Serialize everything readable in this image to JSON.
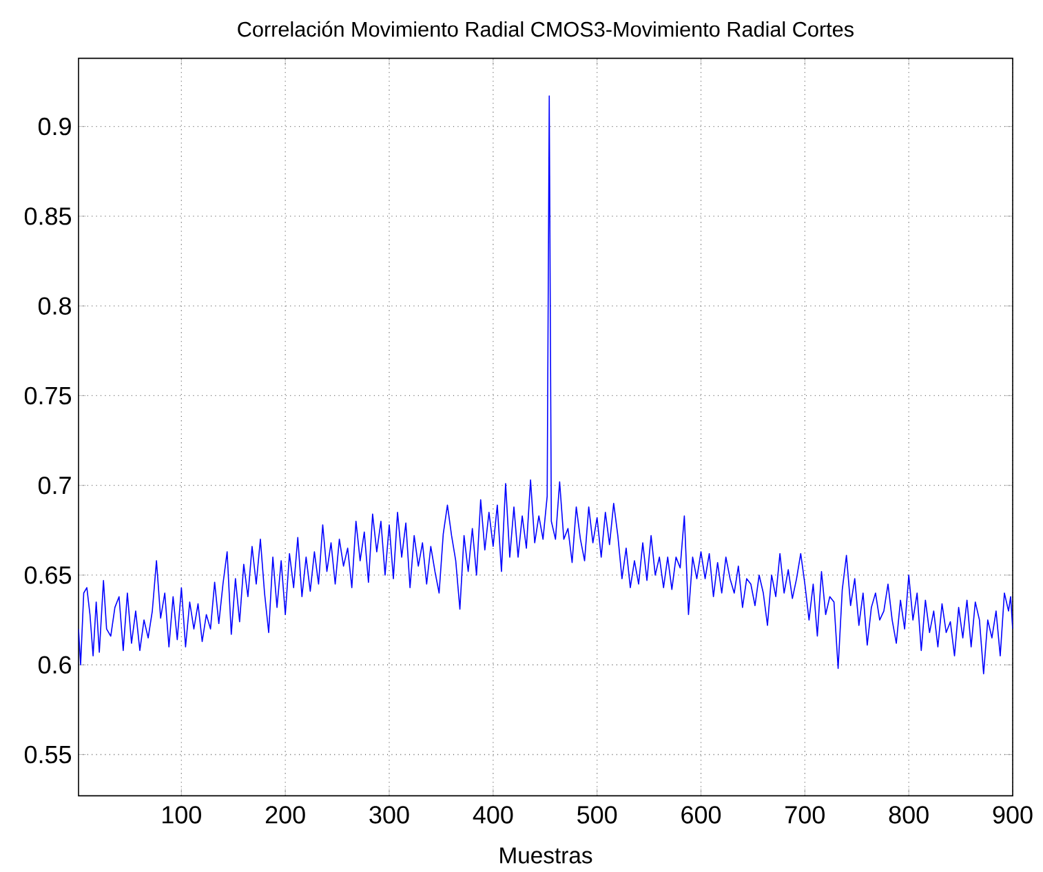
{
  "chart_data": {
    "type": "line",
    "title": "Correlación Movimiento Radial CMOS3-Movimiento Radial Cortes",
    "xlabel": "Muestras",
    "x": [
      1,
      3,
      6,
      9,
      12,
      15,
      18,
      21,
      25,
      28,
      32,
      36,
      40,
      44,
      48,
      52,
      56,
      60,
      64,
      68,
      72,
      76,
      80,
      84,
      88,
      92,
      96,
      100,
      104,
      108,
      112,
      116,
      120,
      124,
      128,
      132,
      136,
      140,
      144,
      148,
      152,
      156,
      160,
      164,
      168,
      172,
      176,
      180,
      184,
      188,
      192,
      196,
      200,
      204,
      208,
      212,
      216,
      220,
      224,
      228,
      232,
      236,
      240,
      244,
      248,
      252,
      256,
      260,
      264,
      268,
      272,
      276,
      280,
      284,
      288,
      292,
      296,
      300,
      304,
      308,
      312,
      316,
      320,
      324,
      328,
      332,
      336,
      340,
      344,
      348,
      352,
      356,
      360,
      364,
      368,
      372,
      376,
      380,
      384,
      388,
      392,
      396,
      400,
      404,
      408,
      412,
      416,
      420,
      424,
      428,
      432,
      436,
      440,
      444,
      448,
      452,
      454,
      456,
      460,
      464,
      468,
      472,
      476,
      480,
      484,
      488,
      492,
      496,
      500,
      504,
      508,
      512,
      516,
      520,
      524,
      528,
      532,
      536,
      540,
      544,
      548,
      552,
      556,
      560,
      564,
      568,
      572,
      576,
      580,
      584,
      588,
      592,
      596,
      600,
      604,
      608,
      612,
      616,
      620,
      624,
      628,
      632,
      636,
      640,
      644,
      648,
      652,
      656,
      660,
      664,
      668,
      672,
      676,
      680,
      684,
      688,
      692,
      696,
      700,
      704,
      708,
      712,
      716,
      720,
      724,
      728,
      732,
      736,
      740,
      744,
      748,
      752,
      756,
      760,
      764,
      768,
      772,
      776,
      780,
      784,
      788,
      792,
      796,
      800,
      804,
      808,
      812,
      816,
      820,
      824,
      828,
      832,
      836,
      840,
      844,
      848,
      852,
      856,
      860,
      864,
      868,
      872,
      876,
      880,
      884,
      888,
      892,
      896,
      898,
      900
    ],
    "series": [
      {
        "color": "#0000ff",
        "values": [
          0.62,
          0.6,
          0.64,
          0.643,
          0.628,
          0.605,
          0.635,
          0.607,
          0.647,
          0.62,
          0.616,
          0.632,
          0.638,
          0.608,
          0.64,
          0.612,
          0.63,
          0.608,
          0.625,
          0.615,
          0.63,
          0.658,
          0.626,
          0.64,
          0.61,
          0.638,
          0.614,
          0.643,
          0.61,
          0.635,
          0.62,
          0.634,
          0.613,
          0.628,
          0.62,
          0.646,
          0.623,
          0.645,
          0.663,
          0.617,
          0.648,
          0.624,
          0.656,
          0.638,
          0.666,
          0.645,
          0.67,
          0.64,
          0.618,
          0.66,
          0.632,
          0.658,
          0.628,
          0.662,
          0.643,
          0.671,
          0.638,
          0.66,
          0.641,
          0.663,
          0.645,
          0.678,
          0.652,
          0.668,
          0.645,
          0.67,
          0.655,
          0.665,
          0.643,
          0.68,
          0.658,
          0.674,
          0.646,
          0.684,
          0.663,
          0.68,
          0.65,
          0.678,
          0.648,
          0.685,
          0.66,
          0.679,
          0.643,
          0.672,
          0.655,
          0.668,
          0.645,
          0.666,
          0.652,
          0.64,
          0.673,
          0.689,
          0.672,
          0.658,
          0.631,
          0.672,
          0.652,
          0.676,
          0.65,
          0.692,
          0.664,
          0.685,
          0.666,
          0.689,
          0.652,
          0.701,
          0.66,
          0.688,
          0.66,
          0.683,
          0.665,
          0.703,
          0.668,
          0.683,
          0.67,
          0.694,
          0.917,
          0.68,
          0.67,
          0.702,
          0.67,
          0.676,
          0.657,
          0.688,
          0.67,
          0.658,
          0.688,
          0.668,
          0.682,
          0.66,
          0.685,
          0.667,
          0.69,
          0.672,
          0.648,
          0.665,
          0.643,
          0.658,
          0.645,
          0.668,
          0.647,
          0.672,
          0.65,
          0.66,
          0.643,
          0.66,
          0.642,
          0.66,
          0.654,
          0.683,
          0.628,
          0.66,
          0.648,
          0.663,
          0.648,
          0.662,
          0.638,
          0.657,
          0.64,
          0.66,
          0.648,
          0.64,
          0.655,
          0.632,
          0.648,
          0.645,
          0.633,
          0.65,
          0.64,
          0.622,
          0.65,
          0.638,
          0.662,
          0.64,
          0.653,
          0.637,
          0.648,
          0.662,
          0.645,
          0.625,
          0.645,
          0.616,
          0.652,
          0.628,
          0.638,
          0.635,
          0.598,
          0.642,
          0.661,
          0.633,
          0.648,
          0.622,
          0.64,
          0.611,
          0.632,
          0.64,
          0.625,
          0.63,
          0.645,
          0.625,
          0.612,
          0.636,
          0.62,
          0.65,
          0.625,
          0.64,
          0.608,
          0.636,
          0.618,
          0.63,
          0.61,
          0.634,
          0.618,
          0.624,
          0.605,
          0.632,
          0.615,
          0.636,
          0.61,
          0.635,
          0.625,
          0.595,
          0.625,
          0.615,
          0.63,
          0.605,
          0.64,
          0.63,
          0.638,
          0.62
        ]
      }
    ],
    "xlim": [
      1,
      900
    ],
    "ylim": [
      0.527,
      0.938
    ],
    "xticks": [
      100,
      200,
      300,
      400,
      500,
      600,
      700,
      800,
      900
    ],
    "yticks": [
      0.55,
      0.6,
      0.65,
      0.7,
      0.75,
      0.8,
      0.85,
      0.9
    ],
    "grid": true,
    "marker": "none",
    "line_style": "solid"
  }
}
